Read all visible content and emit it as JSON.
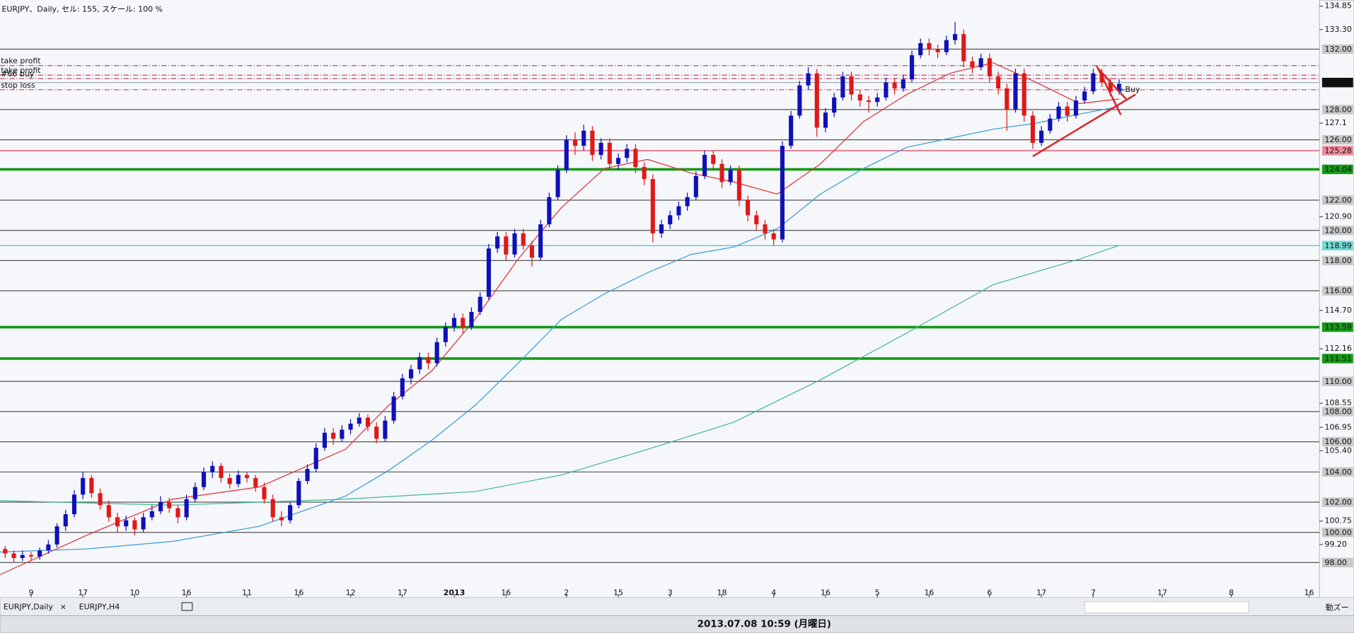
{
  "header": {
    "title": "EURJPY、Daily, セル: 155, スケール: 100 %"
  },
  "chart_data": {
    "type": "candlestick",
    "up_color": "#1010b8",
    "down_color": "#e01818",
    "xlim": [
      -0.6,
      152.2
    ],
    "ylim": [
      95.8,
      135.25
    ],
    "xticks": [
      {
        "value": 3,
        "label": "9"
      },
      {
        "value": 9,
        "label": "17"
      },
      {
        "value": 15,
        "label": "10"
      },
      {
        "value": 21,
        "label": "16"
      },
      {
        "value": 28,
        "label": "11"
      },
      {
        "value": 34,
        "label": "16"
      },
      {
        "value": 40,
        "label": "12"
      },
      {
        "value": 46,
        "label": "17"
      },
      {
        "value": 52,
        "label": "2013"
      },
      {
        "value": 58,
        "label": "16"
      },
      {
        "value": 65,
        "label": "2"
      },
      {
        "value": 71,
        "label": "15"
      },
      {
        "value": 77,
        "label": "3"
      },
      {
        "value": 83,
        "label": "18"
      },
      {
        "value": 89,
        "label": "4"
      },
      {
        "value": 95,
        "label": "16"
      },
      {
        "value": 101,
        "label": "5"
      },
      {
        "value": 107,
        "label": "16"
      },
      {
        "value": 114,
        "label": "6"
      },
      {
        "value": 120,
        "label": "17"
      },
      {
        "value": 126,
        "label": "7"
      },
      {
        "value": 134,
        "label": "17"
      },
      {
        "value": 142,
        "label": "8"
      },
      {
        "value": 151,
        "label": "16"
      }
    ],
    "yticks": [
      134.85,
      {
        "value": 133.3,
        "label": "133.30"
      },
      127.1,
      {
        "value": 120.9,
        "label": "120.90"
      },
      {
        "value": 114.7,
        "label": "114.70"
      },
      112.16,
      108.55,
      106.95,
      {
        "value": 105.4,
        "label": "105.40"
      },
      100.75,
      {
        "value": 99.2,
        "label": "99.20"
      }
    ],
    "levels": [
      {
        "value": 132,
        "label": "132.00",
        "color": "#555555",
        "box": "#c8c8c8"
      },
      {
        "value": 128,
        "label": "128.00",
        "color": "#555555",
        "box": "#c8c8c8"
      },
      {
        "value": 126,
        "label": "126.00",
        "color": "#555555",
        "box": "#c8c8c8"
      },
      {
        "value": 122,
        "label": "122.00",
        "color": "#555555",
        "box": "#c8c8c8"
      },
      {
        "value": 120,
        "label": "120.00",
        "color": "#555555",
        "box": "#c8c8c8"
      },
      {
        "value": 118,
        "label": "118.00",
        "color": "#555555",
        "box": "#c8c8c8"
      },
      {
        "value": 116,
        "label": "116.00",
        "color": "#555555",
        "box": "#c8c8c8"
      },
      {
        "value": 110,
        "label": "110.00",
        "color": "#555555",
        "box": "#c8c8c8"
      },
      {
        "value": 108,
        "label": "108.00",
        "color": "#555555",
        "box": "#c8c8c8"
      },
      {
        "value": 106,
        "label": "106.00",
        "color": "#555555",
        "box": "#c8c8c8"
      },
      {
        "value": 104,
        "label": "104.00",
        "color": "#555555",
        "box": "#c8c8c8"
      },
      {
        "value": 102,
        "label": "102.00",
        "color": "#555555",
        "box": "#c8c8c8"
      },
      {
        "value": 100,
        "label": "100.00",
        "color": "#555555",
        "box": "#c8c8c8"
      },
      {
        "value": 98,
        "label": "98.00",
        "color": "#555555",
        "box": "#c8c8c8"
      },
      {
        "value": 125.28,
        "label": "125.28",
        "color": "#e0405a",
        "box": "#f08a9a"
      },
      {
        "value": 124.04,
        "label": "124.04",
        "color": "#159a15",
        "box": "#159a15"
      },
      {
        "value": 118.99,
        "label": "118.99",
        "color": "#40c8c0",
        "box": "#70dcd4"
      },
      {
        "value": 113.59,
        "label": "113.59",
        "color": "#159a15",
        "box": "#159a15"
      },
      {
        "value": 111.51,
        "label": "111.51",
        "color": "#159a15",
        "box": "#159a15"
      },
      {
        "value": 129.79,
        "label": "129.79",
        "color": "#9aa0a8",
        "box": "#111111"
      }
    ],
    "orders": [
      {
        "name": "take profit",
        "value": 130.91
      },
      {
        "name": "take profit",
        "value": 130.28
      },
      {
        "name": "#66 buy",
        "value": 130.05
      },
      {
        "name": "stop loss",
        "value": 129.31
      }
    ],
    "order_color": "#c04a6a",
    "marker": {
      "text": "Buy",
      "value": 129.3,
      "color": "#30a8a8"
    },
    "candles": [
      [
        98.9,
        99.1,
        98.3,
        98.6
      ],
      [
        98.6,
        98.8,
        98,
        98.3
      ],
      [
        98.3,
        98.8,
        98.1,
        98.5
      ],
      [
        98.5,
        98.7,
        98.1,
        98.4
      ],
      [
        98.4,
        99,
        98.2,
        98.8
      ],
      [
        98.8,
        99.5,
        98.6,
        99.2
      ],
      [
        99.2,
        100.6,
        99,
        100.4
      ],
      [
        100.4,
        101.5,
        100.1,
        101.2
      ],
      [
        101.2,
        102.8,
        101,
        102.5
      ],
      [
        102.5,
        104,
        102.2,
        103.6
      ],
      [
        103.6,
        103.8,
        102.3,
        102.6
      ],
      [
        102.6,
        102.9,
        101.5,
        101.8
      ],
      [
        101.8,
        102.1,
        100.7,
        101
      ],
      [
        101,
        101.3,
        100,
        100.4
      ],
      [
        100.4,
        101.1,
        100.1,
        100.8
      ],
      [
        100.8,
        101,
        99.8,
        100.2
      ],
      [
        100.2,
        101.3,
        100,
        101
      ],
      [
        101,
        101.8,
        100.8,
        101.4
      ],
      [
        101.4,
        102.4,
        101.2,
        102
      ],
      [
        102,
        102.3,
        101.3,
        101.6
      ],
      [
        101.6,
        101.8,
        100.6,
        101
      ],
      [
        101,
        102.5,
        100.8,
        102.2
      ],
      [
        102.2,
        103.3,
        102,
        103
      ],
      [
        103,
        104.3,
        102.8,
        104
      ],
      [
        104,
        104.7,
        103.6,
        104.4
      ],
      [
        104.4,
        104.6,
        103.3,
        103.6
      ],
      [
        103.6,
        103.9,
        102.9,
        103.2
      ],
      [
        103.2,
        104.1,
        103,
        103.8
      ],
      [
        103.8,
        104,
        103.3,
        103.6
      ],
      [
        103.6,
        103.8,
        102.7,
        103
      ],
      [
        103,
        103.3,
        101.9,
        102.2
      ],
      [
        102.2,
        102.5,
        100.7,
        101
      ],
      [
        101,
        101.4,
        100.4,
        100.8
      ],
      [
        100.8,
        102,
        100.6,
        101.8
      ],
      [
        101.8,
        103.6,
        101.6,
        103.4
      ],
      [
        103.4,
        104.5,
        103.2,
        104.2
      ],
      [
        104.2,
        105.9,
        104,
        105.6
      ],
      [
        105.6,
        106.9,
        105.4,
        106.6
      ],
      [
        106.6,
        106.9,
        105.8,
        106.2
      ],
      [
        106.2,
        107.1,
        106,
        106.8
      ],
      [
        106.8,
        107.5,
        106.5,
        107.2
      ],
      [
        107.2,
        107.9,
        107,
        107.6
      ],
      [
        107.6,
        107.8,
        106.7,
        107
      ],
      [
        107,
        107.3,
        105.9,
        106.2
      ],
      [
        106.2,
        107.7,
        106,
        107.4
      ],
      [
        107.4,
        109.3,
        107.2,
        109
      ],
      [
        109,
        110.5,
        108.8,
        110.2
      ],
      [
        110.2,
        111.1,
        109.8,
        110.8
      ],
      [
        110.8,
        111.9,
        110.5,
        111.6
      ],
      [
        111.6,
        111.9,
        110.8,
        111.2
      ],
      [
        111.2,
        112.9,
        111,
        112.6
      ],
      [
        112.6,
        113.9,
        112.3,
        113.6
      ],
      [
        113.6,
        114.5,
        113.3,
        114.2
      ],
      [
        114.2,
        114.5,
        113.2,
        113.6
      ],
      [
        113.6,
        114.9,
        113.4,
        114.6
      ],
      [
        114.6,
        115.9,
        114.4,
        115.6
      ],
      [
        115.6,
        119.1,
        115.4,
        118.8
      ],
      [
        118.8,
        119.9,
        118.5,
        119.6
      ],
      [
        119.6,
        119.9,
        118,
        118.4
      ],
      [
        118.4,
        120.1,
        118.2,
        119.8
      ],
      [
        119.8,
        120.1,
        118.7,
        119
      ],
      [
        119,
        119.3,
        117.6,
        118.2
      ],
      [
        118.2,
        120.7,
        118,
        120.4
      ],
      [
        120.4,
        122.5,
        120.2,
        122.2
      ],
      [
        122.2,
        124.3,
        122,
        124
      ],
      [
        124,
        126.3,
        123.8,
        126
      ],
      [
        126,
        126.5,
        125,
        125.6
      ],
      [
        125.6,
        127,
        125.3,
        126.6
      ],
      [
        126.6,
        126.9,
        124.6,
        125
      ],
      [
        125,
        126.1,
        124.7,
        125.8
      ],
      [
        125.8,
        126.1,
        124,
        124.4
      ],
      [
        124.4,
        125.1,
        124,
        124.8
      ],
      [
        124.8,
        125.7,
        124.5,
        125.4
      ],
      [
        125.4,
        125.7,
        123.8,
        124.2
      ],
      [
        124.2,
        124.5,
        123,
        123.4
      ],
      [
        123.4,
        123.7,
        119.2,
        119.8
      ],
      [
        119.8,
        120.7,
        119.5,
        120.4
      ],
      [
        120.4,
        121.3,
        120.1,
        121
      ],
      [
        121,
        121.9,
        120.7,
        121.6
      ],
      [
        121.6,
        122.5,
        121.3,
        122.2
      ],
      [
        122.2,
        123.9,
        122,
        123.6
      ],
      [
        123.6,
        125.3,
        123.4,
        125
      ],
      [
        125,
        125.3,
        124,
        124.4
      ],
      [
        124.4,
        124.7,
        122.8,
        123.2
      ],
      [
        123.2,
        124.3,
        123,
        124
      ],
      [
        124,
        124.3,
        121.6,
        122
      ],
      [
        122,
        122.3,
        120.6,
        121
      ],
      [
        121,
        121.3,
        120,
        120.4
      ],
      [
        120.4,
        120.7,
        119.4,
        119.8
      ],
      [
        119.8,
        120.1,
        119,
        119.4
      ],
      [
        119.4,
        125.9,
        119.2,
        125.6
      ],
      [
        125.6,
        127.9,
        125.4,
        127.6
      ],
      [
        127.6,
        129.9,
        127.4,
        129.6
      ],
      [
        129.6,
        130.8,
        129.3,
        130.4
      ],
      [
        130.4,
        130.7,
        126.2,
        126.8
      ],
      [
        126.8,
        128.1,
        126.5,
        127.8
      ],
      [
        127.8,
        129.1,
        127.5,
        128.8
      ],
      [
        128.8,
        130.5,
        128.6,
        130.2
      ],
      [
        130.2,
        130.5,
        128.6,
        129
      ],
      [
        129,
        129.3,
        128.2,
        128.6
      ],
      [
        128.6,
        128.9,
        127.8,
        128.5
      ],
      [
        128.5,
        129.1,
        128.2,
        128.8
      ],
      [
        128.8,
        130.1,
        128.6,
        129.8
      ],
      [
        129.8,
        130.1,
        129,
        129.4
      ],
      [
        129.4,
        130.3,
        129.2,
        130
      ],
      [
        130,
        131.9,
        129.8,
        131.6
      ],
      [
        131.6,
        132.7,
        131.4,
        132.4
      ],
      [
        132.4,
        132.7,
        131.6,
        132
      ],
      [
        132,
        132.3,
        131.4,
        131.8
      ],
      [
        131.8,
        132.9,
        131.6,
        132.6
      ],
      [
        132.6,
        133.8,
        132.3,
        133
      ],
      [
        133,
        133.3,
        130.8,
        131.2
      ],
      [
        131.2,
        131.5,
        130.4,
        130.8
      ],
      [
        130.8,
        131.7,
        130.6,
        131.4
      ],
      [
        131.4,
        131.7,
        129.8,
        130.2
      ],
      [
        130.2,
        130.5,
        129,
        129.4
      ],
      [
        129.4,
        129.7,
        126.6,
        128
      ],
      [
        128,
        130.7,
        127.8,
        130.4
      ],
      [
        130.4,
        130.7,
        127.2,
        127.6
      ],
      [
        127.6,
        127.9,
        125.4,
        125.8
      ],
      [
        125.8,
        126.9,
        125.6,
        126.6
      ],
      [
        126.6,
        127.7,
        126.4,
        127.4
      ],
      [
        127.4,
        128.5,
        127.2,
        128.2
      ],
      [
        128.2,
        128.5,
        127.2,
        127.6
      ],
      [
        127.6,
        128.9,
        127.4,
        128.6
      ],
      [
        128.6,
        129.5,
        128.4,
        129.2
      ],
      [
        129.2,
        130.7,
        129,
        130.4
      ],
      [
        130.4,
        130.7,
        129.5,
        129.8
      ],
      [
        129.8,
        130.1,
        128.9,
        129.2
      ],
      [
        129.2,
        130,
        129,
        129.7
      ]
    ],
    "series": [
      {
        "color": "#e03030",
        "x": [
          -0.6,
          9.4,
          19.4,
          29.4,
          39.4,
          44.4,
          49.4,
          54.4,
          59.4,
          64.4,
          69.4,
          74.4,
          79.4,
          84.4,
          89.4,
          94.4,
          99.4,
          104.4,
          109.4,
          114.4,
          119.4,
          124.4,
          129
        ],
        "values": [
          97.2,
          99.8,
          102.2,
          103,
          105.5,
          108.4,
          110.7,
          114.1,
          118.1,
          121.5,
          124.1,
          124.7,
          123.8,
          123.2,
          122.4,
          124.4,
          127.2,
          129,
          130.4,
          131.1,
          129.8,
          128.4,
          128.7
        ]
      },
      {
        "color": "#3a9ad8",
        "x": [
          -0.6,
          9.4,
          19.4,
          29.4,
          39.4,
          44.4,
          49.4,
          54.4,
          59.4,
          64.4,
          69.4,
          74.4,
          79.4,
          84.4,
          89.4,
          94.4,
          99.4,
          104.4,
          109.4,
          114.4,
          119.4,
          124.4,
          129
        ],
        "values": [
          98.7,
          98.9,
          99.4,
          100.4,
          102.4,
          104.1,
          106.1,
          108.4,
          111.2,
          114.1,
          115.8,
          117.2,
          118.4,
          118.9,
          120.1,
          122.4,
          124.1,
          125.5,
          126.1,
          126.7,
          127.1,
          127.7,
          128.2
        ]
      },
      {
        "color": "#40b890",
        "x": [
          -0.6,
          19.4,
          39.4,
          54.4,
          64.4,
          74.4,
          84.4,
          94.4,
          104.4,
          114.4,
          124.4,
          129
        ],
        "values": [
          102.1,
          101.8,
          102.2,
          102.7,
          103.8,
          105.5,
          107.3,
          110.1,
          113.2,
          116.4,
          118.1,
          119
        ]
      }
    ],
    "trendlines": [
      {
        "color": "#e02020",
        "x": [
          119,
          130.9
        ],
        "y": [
          124.9,
          129
        ]
      },
      {
        "color": "#e02020",
        "x": [
          126.4,
          129.2
        ],
        "y": [
          130.9,
          127.65
        ]
      },
      {
        "color": "#e02020",
        "x": [
          126.6,
          129.8
        ],
        "y": [
          130.7,
          128.7
        ]
      }
    ]
  },
  "tabs": [
    {
      "label": "EURJPY,Daily",
      "close": "×"
    },
    {
      "label": "EURJPY,H4"
    }
  ],
  "toolbar": {
    "label": "動ズー"
  },
  "status": {
    "text": "2013.07.08 10:59 (月曜日)"
  }
}
